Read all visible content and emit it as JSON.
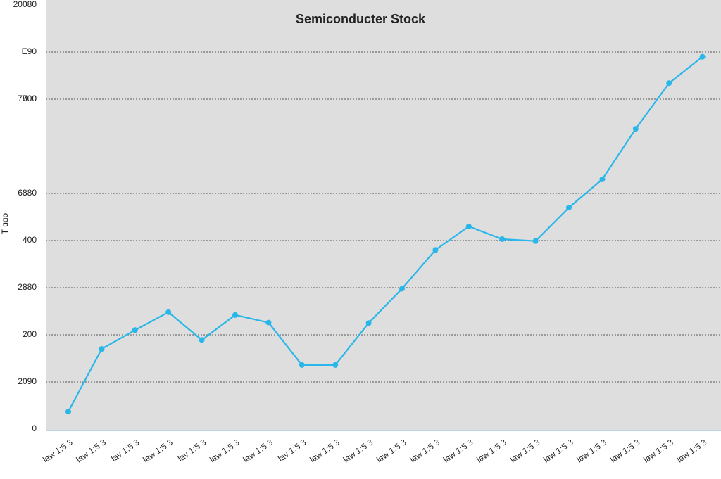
{
  "chart_data": {
    "type": "line",
    "title": "Semiconducter Stock",
    "y_label": "T ɑɑo",
    "categories": [
      "law 1:5 3",
      "law 1:5 3",
      "lav 1:5 3",
      "law 1:5 3",
      "lav 1:5 3",
      "law 1:5 3",
      "law 1:5 3",
      "lav 1:5 3",
      "law 1:5 3",
      "law 1:5 3",
      "law 1:5 3",
      "law 1:5 3",
      "law 1:5 3",
      "law 1:5 3",
      "law 1:5 3",
      "law 1:5 3",
      "law 1:5 3",
      "law 1:5 3",
      "law 1:5 3",
      "law 1:5 3"
    ],
    "series": [
      {
        "name": "Semiconducter Stock",
        "color": "#29b6e8",
        "values": [
          37,
          170,
          210,
          248,
          189,
          242,
          226,
          136,
          136,
          225,
          298,
          380,
          430,
          403,
          399,
          470,
          530,
          637,
          734,
          790
        ]
      }
    ],
    "ylim": [
      0,
      900
    ],
    "yticks": [
      0,
      {
        "value": 100,
        "label": "2090"
      },
      200,
      {
        "value": 300,
        "label": "2880"
      },
      400,
      {
        "value": 500,
        "label": "6880"
      },
      700,
      {
        "value": 700,
        "label": "7800"
      },
      {
        "value": 800,
        "label": "E90"
      },
      {
        "value": 900,
        "label": "20080"
      }
    ],
    "grid": true
  }
}
